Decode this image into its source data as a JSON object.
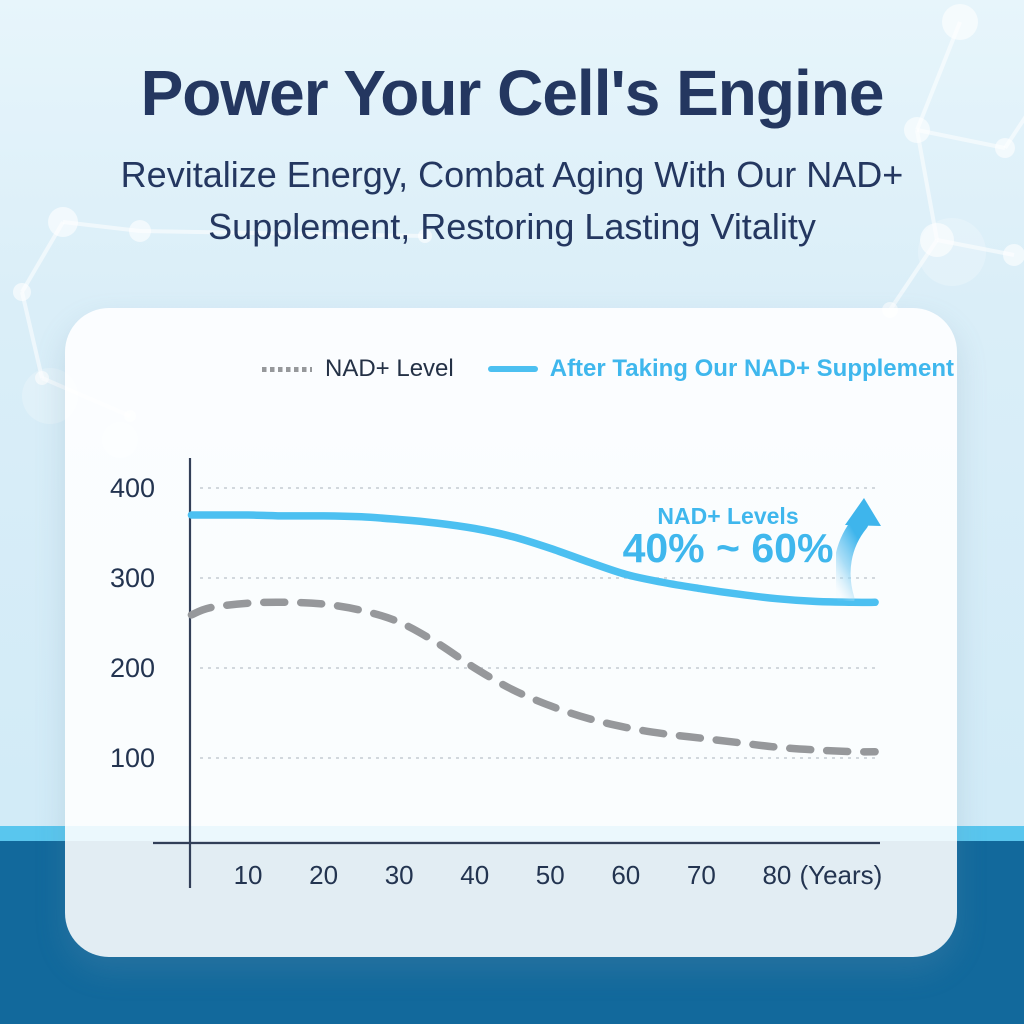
{
  "page": {
    "title": "Power Your Cell's Engine",
    "subtitle_line1": "Revitalize Energy, Combat Aging With Our NAD+",
    "subtitle_line2": "Supplement, Restoring Lasting Vitality"
  },
  "legend": {
    "without_label": "NAD+ Level",
    "with_label": "After Taking Our NAD+ Supplement"
  },
  "annotation": {
    "line1": "NAD+ Levels",
    "line2": "40% ~ 60%",
    "icon": "up-arrow"
  },
  "colors": {
    "navy": "#243760",
    "accent_blue": "#3fb7ed",
    "line_blue": "#4cc0f1",
    "line_gray": "#96989b",
    "gridline": "#c5cbd2",
    "axis": "#323f58",
    "tick_label": "#233450",
    "band_cyan": "#59c6ee",
    "band_dark": "#12699c"
  },
  "chart_data": {
    "type": "line",
    "x_unit_label": "(Years)",
    "x_ticks": [
      10,
      20,
      30,
      40,
      50,
      60,
      70,
      80
    ],
    "y_ticks": [
      400,
      300,
      200,
      100
    ],
    "xlim": [
      0,
      95
    ],
    "ylim": [
      0,
      430
    ],
    "grid": "horizontal-dashed",
    "legend_position": "top-center",
    "x": [
      2.5,
      5,
      10,
      15,
      20,
      25,
      30,
      35,
      40,
      45,
      50,
      55,
      60,
      65,
      70,
      75,
      80,
      85,
      90,
      93
    ],
    "series": [
      {
        "name": "NAD+ Level",
        "style": "dashed",
        "color": "#96989b",
        "values": [
          259,
          267,
          272,
          273,
          271,
          264,
          251,
          228,
          200,
          176,
          158,
          144,
          134,
          127,
          122,
          117,
          112,
          109,
          107,
          107
        ]
      },
      {
        "name": "After Taking Our NAD+ Supplement",
        "style": "solid",
        "color": "#4cc0f1",
        "values": [
          370,
          370,
          370,
          369,
          369,
          368,
          365,
          361,
          355,
          346,
          333,
          318,
          304,
          295,
          288,
          282,
          277,
          274,
          273,
          273
        ]
      }
    ]
  }
}
